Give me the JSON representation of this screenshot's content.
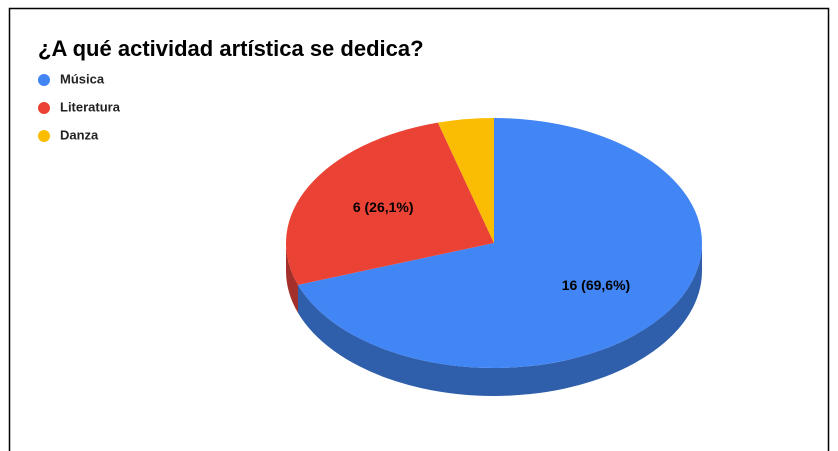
{
  "chart_data": {
    "type": "pie",
    "title": "¿A qué actividad artística se dedica?",
    "categories": [
      "Música",
      "Literatura",
      "Danza"
    ],
    "values": [
      16,
      6,
      1
    ],
    "value_labels": [
      "16 (69,6%)",
      "6 (26,1%)",
      null
    ],
    "colors": [
      "#4285f4",
      "#ea4335",
      "#fbbc04"
    ],
    "side_colors": [
      "#2f5eab",
      "#a3302a",
      "#b08404"
    ],
    "legend": "top-left",
    "three_d": true
  }
}
